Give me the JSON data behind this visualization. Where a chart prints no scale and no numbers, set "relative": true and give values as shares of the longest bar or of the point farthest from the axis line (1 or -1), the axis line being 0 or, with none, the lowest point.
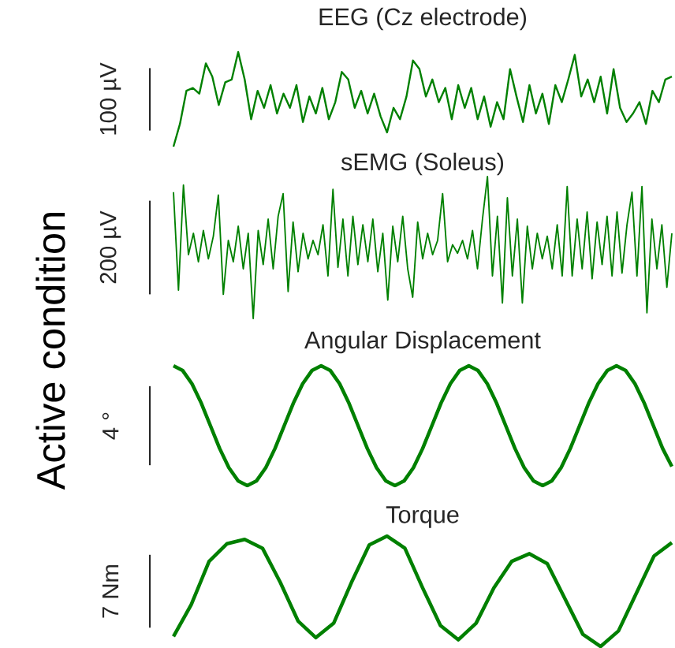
{
  "chart_data": [
    {
      "type": "line",
      "title": "EEG (Cz electrode)",
      "ylabel": "100 µV",
      "relative": true,
      "color": "#008000",
      "annotations": [
        "Active condition"
      ],
      "categories": [
        null,
        null,
        null,
        null,
        null,
        null,
        null,
        null,
        null,
        null,
        null,
        null,
        null,
        null,
        null,
        null,
        null,
        null,
        null,
        null,
        null,
        null,
        null,
        null,
        null,
        null,
        null,
        null,
        null,
        null,
        null,
        null,
        null,
        null,
        null,
        null,
        null,
        null,
        null,
        null,
        null,
        null,
        null,
        null,
        null,
        null,
        null,
        null,
        null,
        null,
        null,
        null,
        null,
        null,
        null,
        null,
        null,
        null,
        null,
        null,
        null,
        null,
        null,
        null,
        null,
        null,
        null,
        null,
        null,
        null,
        null,
        null,
        null,
        null,
        null,
        null,
        null,
        null
      ],
      "values": [
        0,
        0.24,
        0.59,
        0.62,
        0.56,
        0.88,
        0.74,
        0.44,
        0.68,
        0.71,
        1,
        0.71,
        0.29,
        0.59,
        0.41,
        0.65,
        0.35,
        0.56,
        0.41,
        0.65,
        0.26,
        0.53,
        0.35,
        0.62,
        0.29,
        0.47,
        0.79,
        0.71,
        0.41,
        0.59,
        0.35,
        0.56,
        0.32,
        0.15,
        0.41,
        0.29,
        0.53,
        0.91,
        0.82,
        0.53,
        0.71,
        0.47,
        0.62,
        0.29,
        0.65,
        0.41,
        0.62,
        0.29,
        0.53,
        0.21,
        0.47,
        0.29,
        0.82,
        0.53,
        0.26,
        0.65,
        0.35,
        0.56,
        0.24,
        0.65,
        0.47,
        0.71,
        0.97,
        0.53,
        0.71,
        0.47,
        0.74,
        0.35,
        0.82,
        0.41,
        0.26,
        0.35,
        0.47,
        0.24,
        0.59,
        0.47,
        0.71,
        0.74
      ]
    },
    {
      "type": "line",
      "title": "sEMG (Soleus)",
      "ylabel": "200 µV",
      "relative": true,
      "color": "#008000",
      "categories": [
        null,
        null,
        null,
        null,
        null,
        null,
        null,
        null,
        null,
        null,
        null,
        null,
        null,
        null,
        null,
        null,
        null,
        null,
        null,
        null,
        null,
        null,
        null,
        null,
        null,
        null,
        null,
        null,
        null,
        null,
        null,
        null,
        null,
        null,
        null,
        null,
        null,
        null,
        null,
        null,
        null,
        null,
        null,
        null,
        null,
        null,
        null,
        null,
        null,
        null,
        null,
        null,
        null,
        null,
        null,
        null,
        null,
        null,
        null,
        null,
        null,
        null,
        null,
        null,
        null,
        null,
        null,
        null,
        null,
        null,
        null,
        null,
        null,
        null,
        null,
        null,
        null,
        null,
        null,
        null,
        null,
        null,
        null,
        null,
        null,
        null,
        null,
        null,
        null,
        null,
        null,
        null,
        null,
        null,
        null,
        null,
        null,
        null,
        null,
        null,
        null
      ],
      "values": [
        0.89,
        0.2,
        0.94,
        0.45,
        0.6,
        0.4,
        0.62,
        0.42,
        0.58,
        0.87,
        0.17,
        0.55,
        0.4,
        0.65,
        0.35,
        0.6,
        0,
        0.62,
        0.38,
        0.7,
        0.35,
        0.72,
        0.88,
        0.19,
        0.68,
        0.33,
        0.6,
        0.42,
        0.55,
        0.45,
        0.66,
        0.3,
        0.91,
        0.36,
        0.7,
        0.3,
        0.72,
        0.38,
        0.66,
        0.4,
        0.7,
        0.33,
        0.6,
        0.13,
        0.65,
        0.4,
        0.72,
        0.35,
        0.15,
        0.68,
        0.42,
        0.6,
        0.45,
        0.55,
        0.88,
        0.4,
        0.52,
        0.46,
        0.55,
        0.42,
        0.62,
        0.35,
        0.7,
        1,
        0.3,
        0.72,
        0.11,
        0.85,
        0.3,
        0.7,
        0.11,
        0.65,
        0.35,
        0.6,
        0.42,
        0.58,
        0.35,
        0.66,
        0.3,
        0.93,
        0.3,
        0.7,
        0.35,
        0.75,
        0.28,
        0.68,
        0.38,
        0.72,
        0.3,
        0.75,
        0.32,
        0.66,
        0.89,
        0.3,
        0.93,
        0.04,
        0.7,
        0.35,
        0.66,
        0.22,
        0.6
      ]
    },
    {
      "type": "line",
      "title": "Angular Displacement",
      "ylabel": "4 °",
      "relative": true,
      "color": "#008000",
      "categories": [
        null,
        null,
        null,
        null,
        null,
        null,
        null,
        null,
        null,
        null,
        null,
        null,
        null,
        null,
        null,
        null,
        null,
        null,
        null,
        null,
        null,
        null,
        null,
        null,
        null,
        null,
        null,
        null,
        null,
        null,
        null,
        null,
        null,
        null,
        null,
        null,
        null,
        null,
        null,
        null,
        null,
        null,
        null,
        null,
        null,
        null,
        null,
        null,
        null,
        null,
        null,
        null,
        null,
        null,
        null
      ],
      "values": [
        1,
        0.96,
        0.85,
        0.69,
        0.5,
        0.31,
        0.15,
        0.04,
        0,
        0.04,
        0.15,
        0.31,
        0.5,
        0.69,
        0.85,
        0.96,
        1,
        0.96,
        0.85,
        0.69,
        0.5,
        0.31,
        0.15,
        0.04,
        0,
        0.04,
        0.15,
        0.31,
        0.5,
        0.69,
        0.85,
        0.96,
        1,
        0.96,
        0.85,
        0.69,
        0.5,
        0.31,
        0.15,
        0.04,
        0,
        0.04,
        0.15,
        0.31,
        0.5,
        0.69,
        0.85,
        0.96,
        1,
        0.96,
        0.85,
        0.69,
        0.5,
        0.31,
        0.16
      ]
    },
    {
      "type": "line",
      "title": "Torque",
      "ylabel": "7 Nm",
      "relative": true,
      "color": "#008000",
      "categories": [
        null,
        null,
        null,
        null,
        null,
        null,
        null,
        null,
        null,
        null,
        null,
        null,
        null,
        null,
        null,
        null,
        null,
        null,
        null,
        null,
        null,
        null,
        null,
        null,
        null,
        null,
        null,
        null,
        null
      ],
      "values": [
        0.09,
        0.38,
        0.77,
        0.93,
        0.97,
        0.89,
        0.58,
        0.23,
        0.08,
        0.21,
        0.58,
        0.92,
        1,
        0.89,
        0.53,
        0.19,
        0.06,
        0.21,
        0.53,
        0.77,
        0.84,
        0.75,
        0.43,
        0.11,
        0,
        0.14,
        0.48,
        0.82,
        0.94
      ]
    }
  ]
}
